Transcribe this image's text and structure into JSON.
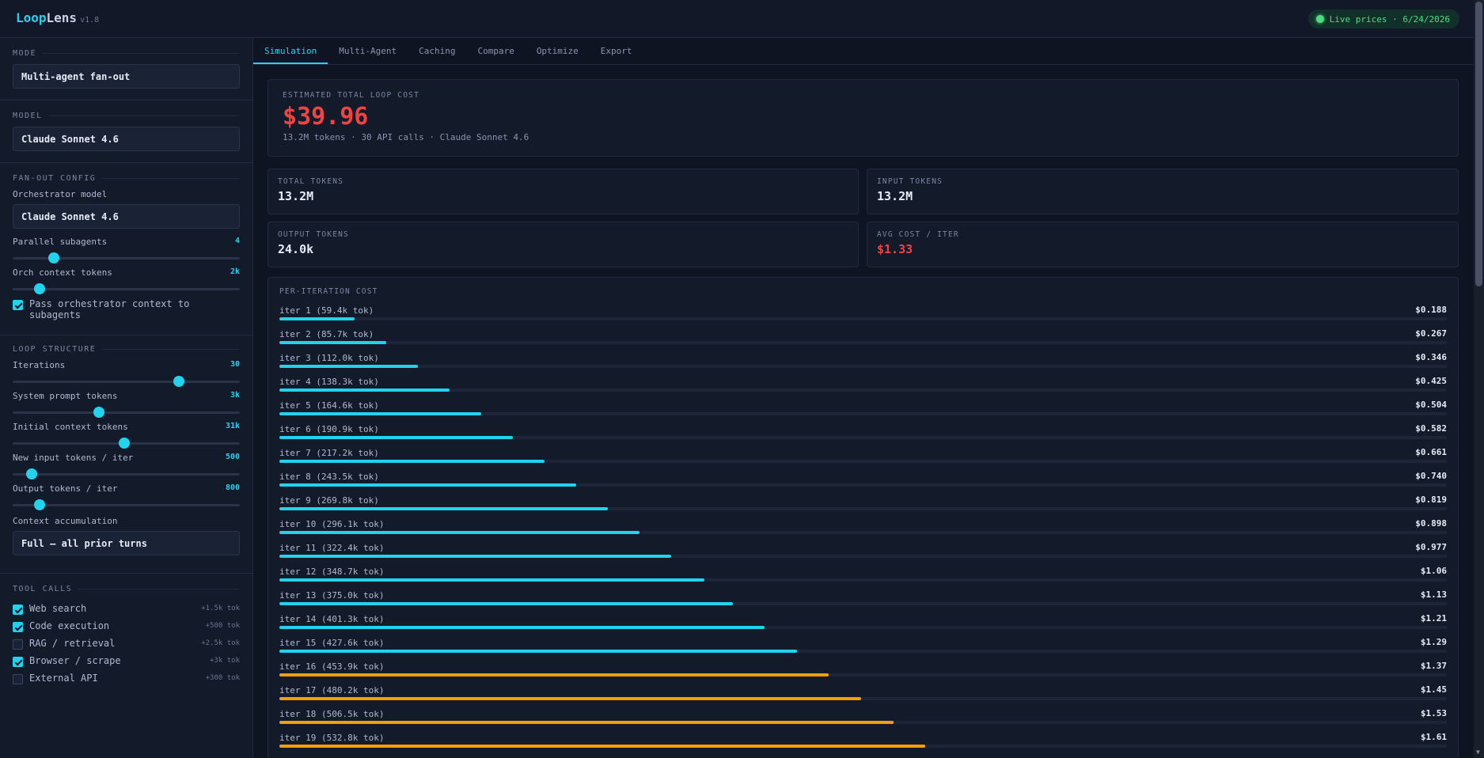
{
  "header": {
    "logo_accent": "Loop",
    "logo_rest": "Lens",
    "version": "v1.8",
    "live_prices": "Live prices · 6/24/2026"
  },
  "sidebar": {
    "mode": {
      "title": "MODE",
      "value": "Multi-agent fan-out"
    },
    "model": {
      "title": "MODEL",
      "value": "Claude Sonnet 4.6"
    },
    "fanout": {
      "title": "FAN-OUT CONFIG",
      "orch_model_label": "Orchestrator model",
      "orch_model_value": "Claude Sonnet 4.6",
      "parallel": {
        "label": "Parallel subagents",
        "value": "4",
        "level": 0.18
      },
      "orch_ctx": {
        "label": "Orch context tokens",
        "value": "2k",
        "level": 0.12
      },
      "pass_ctx": {
        "label": "Pass orchestrator context to subagents",
        "checked": true
      }
    },
    "loop": {
      "title": "LOOP STRUCTURE",
      "iterations": {
        "label": "Iterations",
        "value": "30",
        "level": 0.73
      },
      "sys_prompt": {
        "label": "System prompt tokens",
        "value": "3k",
        "level": 0.38
      },
      "init_ctx": {
        "label": "Initial context tokens",
        "value": "31k",
        "level": 0.49
      },
      "new_input": {
        "label": "New input tokens / iter",
        "value": "500",
        "level": 0.085
      },
      "output": {
        "label": "Output tokens / iter",
        "value": "800",
        "level": 0.12
      },
      "accum_label": "Context accumulation",
      "accum_value": "Full — all prior turns"
    },
    "tools": {
      "title": "TOOL CALLS",
      "items": [
        {
          "name": "Web search",
          "tok": "+1.5k tok",
          "checked": true
        },
        {
          "name": "Code execution",
          "tok": "+500 tok",
          "checked": true
        },
        {
          "name": "RAG / retrieval",
          "tok": "+2.5k tok",
          "checked": false
        },
        {
          "name": "Browser / scrape",
          "tok": "+3k tok",
          "checked": true
        },
        {
          "name": "External API",
          "tok": "+300 tok",
          "checked": false
        }
      ]
    }
  },
  "tabs": [
    "Simulation",
    "Multi-Agent",
    "Caching",
    "Compare",
    "Optimize",
    "Export"
  ],
  "summary": {
    "label": "ESTIMATED TOTAL LOOP COST",
    "cost": "$39.96",
    "sub": "13.2M tokens · 30 API calls · Claude Sonnet 4.6"
  },
  "stats": {
    "total_tokens": {
      "label": "TOTAL TOKENS",
      "value": "13.2M"
    },
    "input_tokens": {
      "label": "INPUT TOKENS",
      "value": "13.2M"
    },
    "output_tokens": {
      "label": "OUTPUT TOKENS",
      "value": "24.0k"
    },
    "avg_cost": {
      "label": "AVG COST / ITER",
      "value": "$1.33"
    }
  },
  "per_iter": {
    "title": "PER-ITERATION COST",
    "colors": {
      "normal": "#22d3ee",
      "high": "#f59e0b"
    },
    "rows": [
      {
        "label": "iter 1 (59.4k tok)",
        "value": "$0.188",
        "cost": 0.188,
        "high": false
      },
      {
        "label": "iter 2 (85.7k tok)",
        "value": "$0.267",
        "cost": 0.267,
        "high": false
      },
      {
        "label": "iter 3 (112.0k tok)",
        "value": "$0.346",
        "cost": 0.346,
        "high": false
      },
      {
        "label": "iter 4 (138.3k tok)",
        "value": "$0.425",
        "cost": 0.425,
        "high": false
      },
      {
        "label": "iter 5 (164.6k tok)",
        "value": "$0.504",
        "cost": 0.504,
        "high": false
      },
      {
        "label": "iter 6 (190.9k tok)",
        "value": "$0.582",
        "cost": 0.582,
        "high": false
      },
      {
        "label": "iter 7 (217.2k tok)",
        "value": "$0.661",
        "cost": 0.661,
        "high": false
      },
      {
        "label": "iter 8 (243.5k tok)",
        "value": "$0.740",
        "cost": 0.74,
        "high": false
      },
      {
        "label": "iter 9 (269.8k tok)",
        "value": "$0.819",
        "cost": 0.819,
        "high": false
      },
      {
        "label": "iter 10 (296.1k tok)",
        "value": "$0.898",
        "cost": 0.898,
        "high": false
      },
      {
        "label": "iter 11 (322.4k tok)",
        "value": "$0.977",
        "cost": 0.977,
        "high": false
      },
      {
        "label": "iter 12 (348.7k tok)",
        "value": "$1.06",
        "cost": 1.06,
        "high": false
      },
      {
        "label": "iter 13 (375.0k tok)",
        "value": "$1.13",
        "cost": 1.13,
        "high": false
      },
      {
        "label": "iter 14 (401.3k tok)",
        "value": "$1.21",
        "cost": 1.21,
        "high": false
      },
      {
        "label": "iter 15 (427.6k tok)",
        "value": "$1.29",
        "cost": 1.29,
        "high": false
      },
      {
        "label": "iter 16 (453.9k tok)",
        "value": "$1.37",
        "cost": 1.37,
        "high": true
      },
      {
        "label": "iter 17 (480.2k tok)",
        "value": "$1.45",
        "cost": 1.45,
        "high": true
      },
      {
        "label": "iter 18 (506.5k tok)",
        "value": "$1.53",
        "cost": 1.53,
        "high": true
      },
      {
        "label": "iter 19 (532.8k tok)",
        "value": "$1.61",
        "cost": 1.61,
        "high": true
      }
    ],
    "max_cost": 2.91
  }
}
